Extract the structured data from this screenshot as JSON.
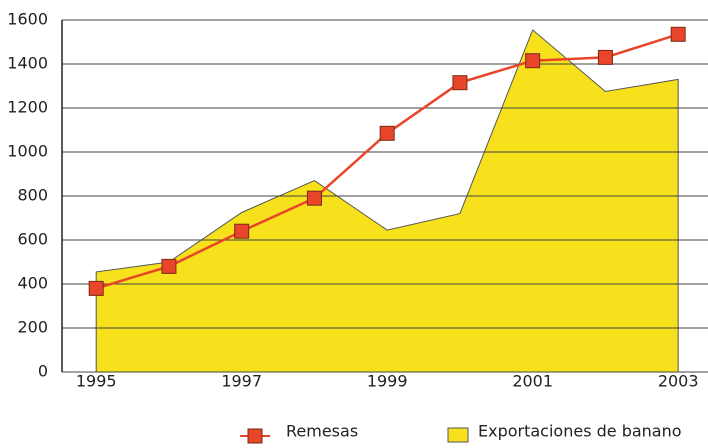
{
  "chart_data": {
    "type": "line",
    "x": [
      1995,
      1996,
      1997,
      1998,
      1999,
      2000,
      2001,
      2002,
      2003
    ],
    "series": [
      {
        "name": "Remesas",
        "type": "line",
        "color": "#e8452a",
        "values": [
          380,
          480,
          640,
          790,
          1085,
          1315,
          1415,
          1430,
          1535
        ]
      },
      {
        "name": "Exportaciones de banano",
        "type": "area",
        "color": "#f6e11c",
        "values": [
          455,
          500,
          725,
          870,
          645,
          720,
          1555,
          1275,
          1330
        ]
      }
    ],
    "xlim": [
      1994.53,
      2003.41
    ],
    "xticks": [
      1995,
      1997,
      1999,
      2001,
      2003
    ],
    "ylim": [
      0,
      1600
    ],
    "yticks": [
      0,
      200,
      400,
      600,
      800,
      1000,
      1200,
      1400,
      1600
    ],
    "grid": true,
    "legend": "bottom"
  }
}
